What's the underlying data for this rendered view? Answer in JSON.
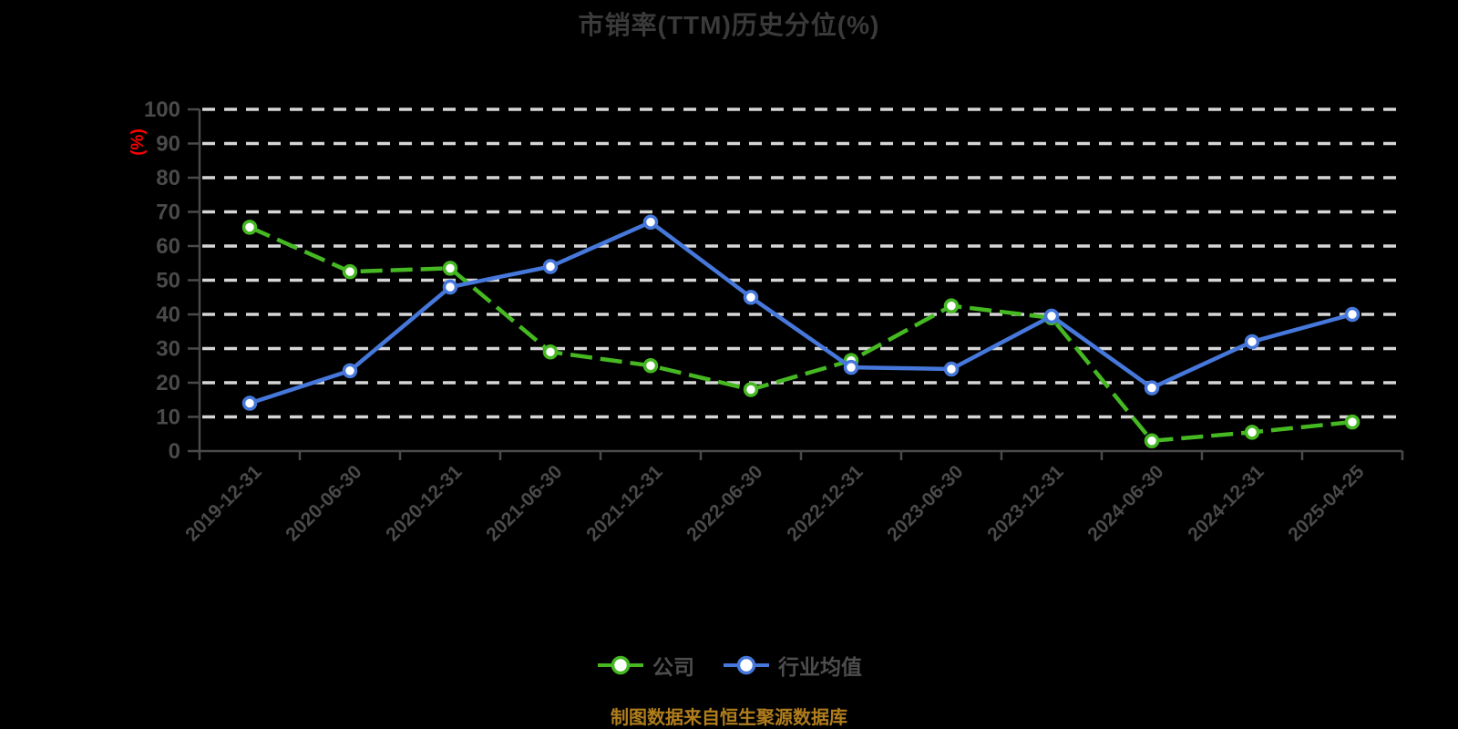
{
  "title": "市销率(TTM)历史分位(%)",
  "footer": "制图数据来自恒生聚源数据库",
  "y_axis_unit_label": "(%)",
  "legend": [
    {
      "label": "公司",
      "color": "#45b822"
    },
    {
      "label": "行业均值",
      "color": "#4678dc"
    }
  ],
  "colors": {
    "background": "#000000",
    "title": "#3a3a3a",
    "grid": "#d6d6d6",
    "axis": "#4a4a4a",
    "tick_label": "#4a4a4a",
    "unit_label": "#ff0000",
    "footer": "#b07d1c",
    "marker_fill": "#ffffff",
    "company_green": "#45b822",
    "industry_blue": "#4678dc"
  },
  "chart_data": {
    "type": "line",
    "title": "市销率(TTM)历史分位(%)",
    "xlabel": "",
    "ylabel": "(%)",
    "ylim": [
      0,
      100
    ],
    "y_ticks": [
      0,
      10,
      20,
      30,
      40,
      50,
      60,
      70,
      80,
      90,
      100
    ],
    "grid": true,
    "grid_style": "dashed",
    "legend_position": "bottom",
    "categories": [
      "2019-12-31",
      "2020-06-30",
      "2020-12-31",
      "2021-06-30",
      "2021-12-31",
      "2022-06-30",
      "2022-12-31",
      "2023-06-30",
      "2023-12-31",
      "2024-06-30",
      "2024-12-31",
      "2025-04-25"
    ],
    "series": [
      {
        "name": "公司",
        "color": "#45b822",
        "line_style": "dashed",
        "marker": "circle-white-fill",
        "values": [
          65.5,
          52.5,
          53.5,
          29,
          25,
          18,
          26.5,
          42.5,
          39,
          3,
          5.5,
          8.5
        ]
      },
      {
        "name": "行业均值",
        "color": "#4678dc",
        "line_style": "solid",
        "marker": "circle-white-fill",
        "values": [
          14,
          23.5,
          48,
          54,
          67,
          45,
          24.5,
          24,
          39.5,
          18.5,
          32,
          40
        ]
      }
    ]
  }
}
